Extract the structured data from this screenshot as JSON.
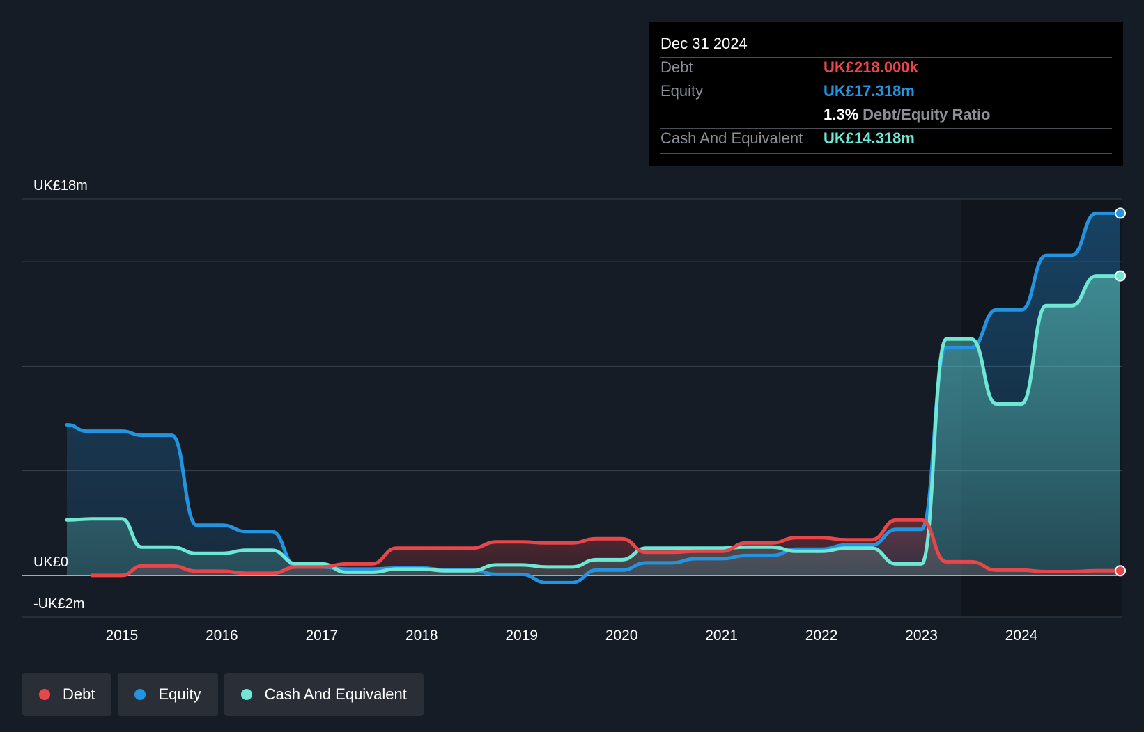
{
  "tooltip": {
    "date": "Dec 31 2024",
    "debt_label": "Debt",
    "debt_value": "UK£218.000k",
    "equity_label": "Equity",
    "equity_value": "UK£17.318m",
    "ratio_value": "1.3%",
    "ratio_label": "Debt/Equity Ratio",
    "cash_label": "Cash And Equivalent",
    "cash_value": "UK£14.318m"
  },
  "legend": {
    "debt": "Debt",
    "equity": "Equity",
    "cash": "Cash And Equivalent"
  },
  "colors": {
    "background": "#161c26",
    "debt": "#e8464a",
    "equity": "#2394df",
    "cash": "#6ee7d5"
  },
  "chart_data": {
    "type": "area",
    "y_tick_labels": [
      {
        "value": 18,
        "label": "UK£18m"
      },
      {
        "value": 0,
        "label": "UK£0"
      },
      {
        "value": -2,
        "label": "-UK£2m"
      }
    ],
    "ylim": [
      -2,
      18
    ],
    "xlim": [
      2014.45,
      2024.99
    ],
    "x_tick_labels": [
      "2015",
      "2016",
      "2017",
      "2018",
      "2019",
      "2020",
      "2021",
      "2022",
      "2023",
      "2024"
    ],
    "x_ticks": [
      2015,
      2016,
      2017,
      2018,
      2019,
      2020,
      2021,
      2022,
      2023,
      2024
    ],
    "gridlines": [
      18,
      15,
      10,
      5,
      0,
      -2
    ],
    "series": [
      {
        "name": "Equity",
        "key": "equity",
        "points": [
          [
            2014.45,
            7.2
          ],
          [
            2014.65,
            6.9
          ],
          [
            2015.0,
            6.9
          ],
          [
            2015.2,
            6.7
          ],
          [
            2015.5,
            6.7
          ],
          [
            2015.75,
            2.4
          ],
          [
            2016.0,
            2.4
          ],
          [
            2016.25,
            2.1
          ],
          [
            2016.5,
            2.1
          ],
          [
            2016.75,
            0.4
          ],
          [
            2017.0,
            0.4
          ],
          [
            2017.25,
            0.3
          ],
          [
            2017.5,
            0.3
          ],
          [
            2017.75,
            0.35
          ],
          [
            2018.0,
            0.35
          ],
          [
            2018.25,
            0.25
          ],
          [
            2018.5,
            0.25
          ],
          [
            2018.75,
            0.05
          ],
          [
            2019.0,
            0.05
          ],
          [
            2019.25,
            -0.35
          ],
          [
            2019.5,
            -0.35
          ],
          [
            2019.75,
            0.25
          ],
          [
            2020.0,
            0.25
          ],
          [
            2020.25,
            0.6
          ],
          [
            2020.5,
            0.6
          ],
          [
            2020.75,
            0.8
          ],
          [
            2021.0,
            0.8
          ],
          [
            2021.25,
            0.95
          ],
          [
            2021.5,
            0.95
          ],
          [
            2021.75,
            1.25
          ],
          [
            2022.0,
            1.25
          ],
          [
            2022.25,
            1.45
          ],
          [
            2022.5,
            1.45
          ],
          [
            2022.75,
            2.2
          ],
          [
            2023.0,
            2.2
          ],
          [
            2023.25,
            10.9
          ],
          [
            2023.5,
            10.9
          ],
          [
            2023.75,
            12.7
          ],
          [
            2024.0,
            12.7
          ],
          [
            2024.25,
            15.3
          ],
          [
            2024.5,
            15.3
          ],
          [
            2024.75,
            17.32
          ],
          [
            2024.99,
            17.32
          ]
        ]
      },
      {
        "name": "Cash And Equivalent",
        "key": "cash",
        "points": [
          [
            2014.45,
            2.65
          ],
          [
            2014.7,
            2.7
          ],
          [
            2015.0,
            2.7
          ],
          [
            2015.2,
            1.35
          ],
          [
            2015.5,
            1.35
          ],
          [
            2015.75,
            1.05
          ],
          [
            2016.0,
            1.05
          ],
          [
            2016.25,
            1.2
          ],
          [
            2016.5,
            1.2
          ],
          [
            2016.75,
            0.55
          ],
          [
            2017.0,
            0.55
          ],
          [
            2017.25,
            0.15
          ],
          [
            2017.5,
            0.15
          ],
          [
            2017.75,
            0.3
          ],
          [
            2018.0,
            0.3
          ],
          [
            2018.25,
            0.22
          ],
          [
            2018.5,
            0.22
          ],
          [
            2018.75,
            0.5
          ],
          [
            2019.0,
            0.5
          ],
          [
            2019.25,
            0.4
          ],
          [
            2019.5,
            0.4
          ],
          [
            2019.75,
            0.75
          ],
          [
            2020.0,
            0.75
          ],
          [
            2020.25,
            1.3
          ],
          [
            2020.5,
            1.3
          ],
          [
            2020.75,
            1.3
          ],
          [
            2021.0,
            1.3
          ],
          [
            2021.25,
            1.35
          ],
          [
            2021.5,
            1.35
          ],
          [
            2021.75,
            1.15
          ],
          [
            2022.0,
            1.15
          ],
          [
            2022.25,
            1.3
          ],
          [
            2022.5,
            1.3
          ],
          [
            2022.75,
            0.55
          ],
          [
            2023.0,
            0.55
          ],
          [
            2023.25,
            11.3
          ],
          [
            2023.5,
            11.3
          ],
          [
            2023.75,
            8.2
          ],
          [
            2024.0,
            8.2
          ],
          [
            2024.25,
            12.9
          ],
          [
            2024.5,
            12.9
          ],
          [
            2024.75,
            14.32
          ],
          [
            2024.99,
            14.32
          ]
        ]
      },
      {
        "name": "Debt",
        "key": "debt",
        "points": [
          [
            2014.7,
            0.0
          ],
          [
            2015.0,
            0.0
          ],
          [
            2015.2,
            0.45
          ],
          [
            2015.5,
            0.45
          ],
          [
            2015.75,
            0.2
          ],
          [
            2016.0,
            0.2
          ],
          [
            2016.25,
            0.1
          ],
          [
            2016.5,
            0.1
          ],
          [
            2016.75,
            0.4
          ],
          [
            2017.0,
            0.4
          ],
          [
            2017.25,
            0.55
          ],
          [
            2017.5,
            0.55
          ],
          [
            2017.75,
            1.3
          ],
          [
            2018.0,
            1.3
          ],
          [
            2018.25,
            1.3
          ],
          [
            2018.5,
            1.3
          ],
          [
            2018.75,
            1.6
          ],
          [
            2019.0,
            1.6
          ],
          [
            2019.25,
            1.55
          ],
          [
            2019.5,
            1.55
          ],
          [
            2019.75,
            1.75
          ],
          [
            2020.0,
            1.75
          ],
          [
            2020.25,
            1.1
          ],
          [
            2020.5,
            1.1
          ],
          [
            2020.75,
            1.15
          ],
          [
            2021.0,
            1.15
          ],
          [
            2021.25,
            1.55
          ],
          [
            2021.5,
            1.55
          ],
          [
            2021.75,
            1.8
          ],
          [
            2022.0,
            1.8
          ],
          [
            2022.25,
            1.7
          ],
          [
            2022.5,
            1.7
          ],
          [
            2022.75,
            2.65
          ],
          [
            2023.0,
            2.65
          ],
          [
            2023.25,
            0.65
          ],
          [
            2023.5,
            0.65
          ],
          [
            2023.75,
            0.25
          ],
          [
            2024.0,
            0.25
          ],
          [
            2024.25,
            0.18
          ],
          [
            2024.5,
            0.18
          ],
          [
            2024.75,
            0.22
          ],
          [
            2024.99,
            0.22
          ]
        ]
      }
    ]
  }
}
